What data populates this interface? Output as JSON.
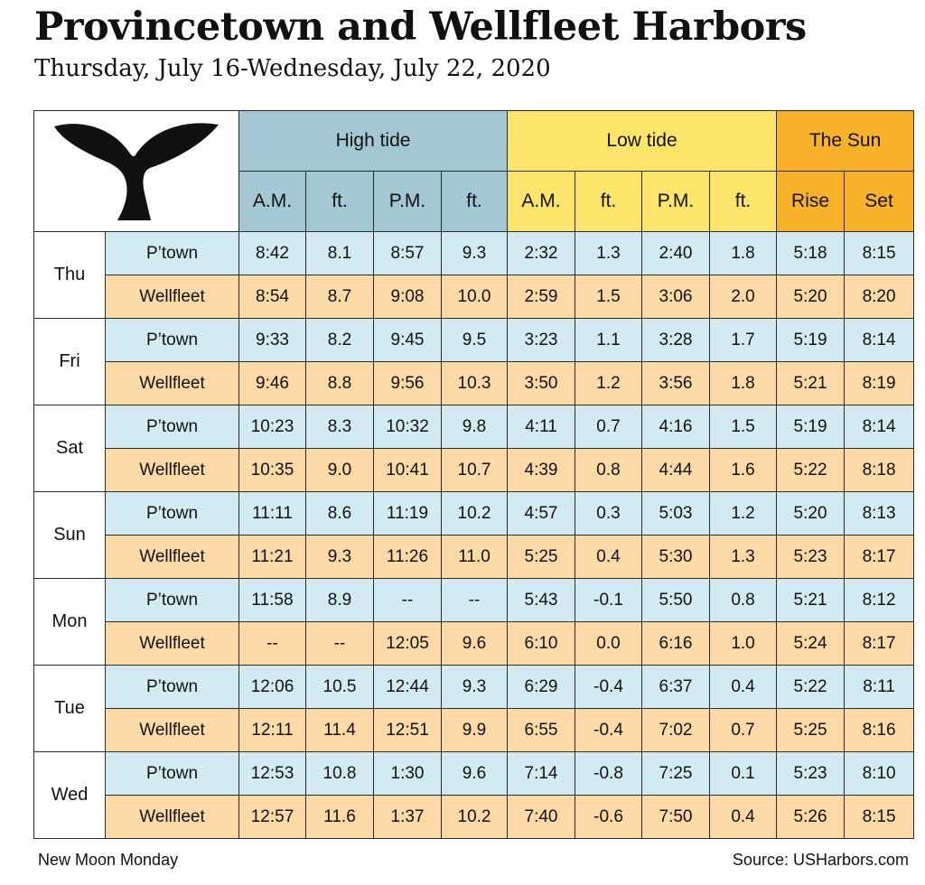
{
  "title": "Provincetown and Wellfleet Harbors",
  "subtitle": "Thursday, July 16-Wednesday, July 22, 2020",
  "groups": {
    "high": "High tide",
    "low": "Low tide",
    "sun": "The Sun"
  },
  "columns": [
    "A.M.",
    "ft.",
    "P.M.",
    "ft.",
    "A.M.",
    "ft.",
    "P.M.",
    "ft.",
    "Rise",
    "Set"
  ],
  "locations": [
    "P’town",
    "Wellfleet"
  ],
  "days": [
    {
      "day": "Thu",
      "rows": [
        [
          "8:42",
          "8.1",
          "8:57",
          "9.3",
          "2:32",
          "1.3",
          "2:40",
          "1.8",
          "5:18",
          "8:15"
        ],
        [
          "8:54",
          "8.7",
          "9:08",
          "10.0",
          "2:59",
          "1.5",
          "3:06",
          "2.0",
          "5:20",
          "8:20"
        ]
      ]
    },
    {
      "day": "Fri",
      "rows": [
        [
          "9:33",
          "8.2",
          "9:45",
          "9.5",
          "3:23",
          "1.1",
          "3:28",
          "1.7",
          "5:19",
          "8:14"
        ],
        [
          "9:46",
          "8.8",
          "9:56",
          "10.3",
          "3:50",
          "1.2",
          "3:56",
          "1.8",
          "5:21",
          "8:19"
        ]
      ]
    },
    {
      "day": "Sat",
      "rows": [
        [
          "10:23",
          "8.3",
          "10:32",
          "9.8",
          "4:11",
          "0.7",
          "4:16",
          "1.5",
          "5:19",
          "8:14"
        ],
        [
          "10:35",
          "9.0",
          "10:41",
          "10.7",
          "4:39",
          "0.8",
          "4:44",
          "1.6",
          "5:22",
          "8:18"
        ]
      ]
    },
    {
      "day": "Sun",
      "rows": [
        [
          "11:11",
          "8.6",
          "11:19",
          "10.2",
          "4:57",
          "0.3",
          "5:03",
          "1.2",
          "5:20",
          "8:13"
        ],
        [
          "11:21",
          "9.3",
          "11:26",
          "11.0",
          "5:25",
          "0.4",
          "5:30",
          "1.3",
          "5:23",
          "8:17"
        ]
      ]
    },
    {
      "day": "Mon",
      "rows": [
        [
          "11:58",
          "8.9",
          "--",
          "--",
          "5:43",
          "-0.1",
          "5:50",
          "0.8",
          "5:21",
          "8:12"
        ],
        [
          "--",
          "--",
          "12:05",
          "9.6",
          "6:10",
          "0.0",
          "6:16",
          "1.0",
          "5:24",
          "8:17"
        ]
      ]
    },
    {
      "day": "Tue",
      "rows": [
        [
          "12:06",
          "10.5",
          "12:44",
          "9.3",
          "6:29",
          "-0.4",
          "6:37",
          "0.4",
          "5:22",
          "8:11"
        ],
        [
          "12:11",
          "11.4",
          "12:51",
          "9.9",
          "6:55",
          "-0.4",
          "7:02",
          "0.7",
          "5:25",
          "8:16"
        ]
      ]
    },
    {
      "day": "Wed",
      "rows": [
        [
          "12:53",
          "10.8",
          "1:30",
          "9.6",
          "7:14",
          "-0.8",
          "7:25",
          "0.1",
          "5:23",
          "8:10"
        ],
        [
          "12:57",
          "11.6",
          "1:37",
          "10.2",
          "7:40",
          "-0.6",
          "7:50",
          "0.4",
          "5:26",
          "8:15"
        ]
      ]
    }
  ],
  "footer": {
    "left": "New Moon Monday",
    "right": "Source: USHarbors.com"
  },
  "colors": {
    "high_header": "#a3c7d3",
    "low_header": "#fde46a",
    "sun_header": "#f8b22a",
    "ptown_row": "#d2ebf2",
    "wellfleet_row": "#fdd9a8"
  },
  "logo_icon": "whale-tail-icon"
}
